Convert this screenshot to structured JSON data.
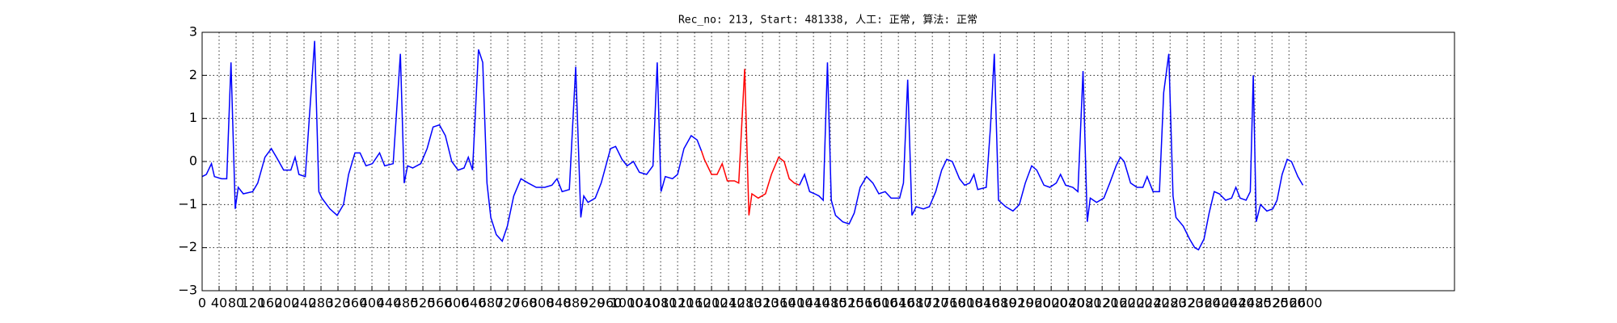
{
  "chart_data": {
    "type": "line",
    "title": "Rec_no: 213, Start: 481338, 人工: 正常, 算法: 正常",
    "xlim": [
      0,
      2950
    ],
    "ylim": [
      -3,
      3
    ],
    "grid": true,
    "yticks": [
      {
        "value": -3,
        "label": "−3"
      },
      {
        "value": -2,
        "label": "−2"
      },
      {
        "value": -1,
        "label": "−1"
      },
      0,
      1,
      2,
      3
    ],
    "xticks": [
      0,
      40,
      80,
      120,
      160,
      200,
      240,
      280,
      320,
      360,
      400,
      440,
      480,
      520,
      560,
      600,
      640,
      680,
      720,
      760,
      800,
      840,
      880,
      920,
      960,
      1000,
      1040,
      1080,
      1120,
      1160,
      1200,
      1240,
      1280,
      1320,
      1360,
      1400,
      1440,
      1480,
      1520,
      1560,
      1600,
      1640,
      1680,
      1720,
      1760,
      1800,
      1840,
      1880,
      1920,
      1960,
      2000,
      2040,
      2080,
      2120,
      2160,
      2200,
      2240,
      2280,
      2320,
      2360,
      2400,
      2440,
      2480,
      2520,
      2560,
      2600
    ],
    "series": [
      {
        "color": "#0000ff",
        "x": [
          0,
          10,
          22,
          29,
          46,
          58,
          68,
          78,
          85,
          97,
          119,
          131,
          148,
          163,
          175,
          192,
          209,
          219,
          228,
          243,
          265,
          275,
          282,
          301,
          318,
          333,
          345,
          360,
          372,
          386,
          401,
          418,
          430,
          450,
          467,
          476,
          484,
          496,
          515,
          530,
          544,
          559,
          573,
          588,
          603,
          617,
          627,
          637,
          651,
          661,
          671,
          680,
          693,
          707,
          719,
          734,
          751,
          768,
          787,
          807,
          824,
          836,
          848,
          865,
          880,
          892,
          899,
          909,
          926,
          940,
          962,
          974,
          989,
          1001,
          1016,
          1030,
          1047,
          1062,
          1072,
          1081,
          1091,
          1108,
          1120,
          1135,
          1152,
          1166,
          1176
        ],
        "values": [
          -0.35,
          -0.3,
          -0.05,
          -0.35,
          -0.4,
          -0.4,
          2.3,
          -1.1,
          -0.6,
          -0.75,
          -0.7,
          -0.5,
          0.1,
          0.3,
          0.1,
          -0.2,
          -0.2,
          0.1,
          -0.3,
          -0.35,
          2.8,
          -0.7,
          -0.85,
          -1.1,
          -1.25,
          -1.0,
          -0.3,
          0.2,
          0.2,
          -0.1,
          -0.05,
          0.2,
          -0.1,
          -0.05,
          2.5,
          -0.5,
          -0.1,
          -0.15,
          -0.05,
          0.3,
          0.8,
          0.85,
          0.6,
          0.0,
          -0.2,
          -0.15,
          0.1,
          -0.2,
          2.6,
          2.3,
          -0.5,
          -1.3,
          -1.7,
          -1.85,
          -1.5,
          -0.8,
          -0.4,
          -0.5,
          -0.6,
          -0.6,
          -0.55,
          -0.4,
          -0.7,
          -0.65,
          2.2,
          -1.3,
          -0.8,
          -0.95,
          -0.85,
          -0.5,
          0.3,
          0.35,
          0.05,
          -0.1,
          0.0,
          -0.25,
          -0.3,
          -0.1,
          2.3,
          -0.7,
          -0.35,
          -0.4,
          -0.3,
          0.3,
          0.6,
          0.5,
          0.25
        ]
      },
      {
        "color": "#ff0000",
        "x": [
          1176,
          1183,
          1200,
          1213,
          1225,
          1237,
          1254,
          1264,
          1278,
          1288,
          1295,
          1310,
          1327,
          1341,
          1358,
          1371,
          1383,
          1395,
          1407
        ],
        "values": [
          0.25,
          0.05,
          -0.3,
          -0.3,
          -0.05,
          -0.45,
          -0.45,
          -0.5,
          2.15,
          -1.25,
          -0.75,
          -0.85,
          -0.75,
          -0.3,
          0.1,
          0.0,
          -0.4,
          -0.5,
          -0.55
        ]
      },
      {
        "color": "#0000ff",
        "x": [
          1407,
          1419,
          1431,
          1443,
          1453,
          1463,
          1473,
          1482,
          1492,
          1509,
          1524,
          1536,
          1550,
          1565,
          1580,
          1594,
          1609,
          1623,
          1643,
          1652,
          1662,
          1672,
          1682,
          1699,
          1713,
          1728,
          1742,
          1754,
          1767,
          1784,
          1796,
          1808,
          1818,
          1827,
          1847,
          1857,
          1866,
          1876,
          1893,
          1910,
          1925,
          1939,
          1954,
          1966,
          1983,
          1997,
          2012,
          2022,
          2034,
          2051,
          2063,
          2075,
          2085,
          2092,
          2107,
          2124,
          2138,
          2153,
          2163,
          2172,
          2187,
          2202,
          2216,
          2226,
          2240,
          2255,
          2265,
          2277,
          2287,
          2294,
          2311,
          2326,
          2338,
          2347,
          2360,
          2372,
          2384,
          2396,
          2411,
          2425,
          2435,
          2445,
          2459,
          2469,
          2476,
          2483,
          2493,
          2508,
          2522,
          2532,
          2544,
          2556,
          2566,
          2581,
          2593
        ],
        "values": [
          -0.55,
          -0.3,
          -0.7,
          -0.75,
          -0.8,
          -0.9,
          2.3,
          -0.9,
          -1.25,
          -1.4,
          -1.45,
          -1.2,
          -0.6,
          -0.35,
          -0.5,
          -0.75,
          -0.7,
          -0.85,
          -0.85,
          -0.5,
          1.9,
          -1.25,
          -1.05,
          -1.1,
          -1.05,
          -0.7,
          -0.2,
          0.05,
          0.0,
          -0.4,
          -0.55,
          -0.5,
          -0.3,
          -0.65,
          -0.6,
          0.8,
          2.5,
          -0.9,
          -1.05,
          -1.15,
          -1.0,
          -0.5,
          -0.1,
          -0.2,
          -0.55,
          -0.6,
          -0.5,
          -0.3,
          -0.55,
          -0.6,
          -0.7,
          2.1,
          -1.4,
          -0.85,
          -0.95,
          -0.85,
          -0.5,
          -0.1,
          0.1,
          0.0,
          -0.5,
          -0.6,
          -0.6,
          -0.35,
          -0.7,
          -0.7,
          1.6,
          2.5,
          -0.8,
          -1.3,
          -1.5,
          -1.8,
          -2.0,
          -2.05,
          -1.8,
          -1.2,
          -0.7,
          -0.75,
          -0.9,
          -0.85,
          -0.6,
          -0.85,
          -0.9,
          -0.7,
          2.0,
          -1.4,
          -1.0,
          -1.15,
          -1.1,
          -0.9,
          -0.3,
          0.05,
          0.0,
          -0.35,
          -0.55
        ]
      }
    ]
  }
}
